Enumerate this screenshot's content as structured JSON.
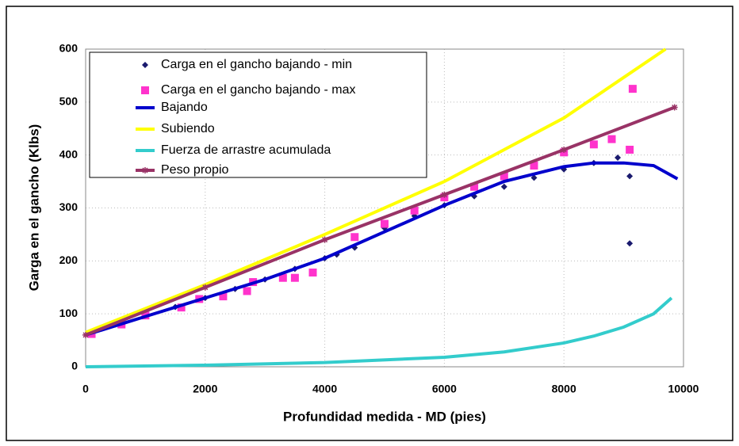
{
  "chart_data": {
    "type": "scatter",
    "xlabel": "Profundidad medida - MD (pies)",
    "ylabel": "Garga en el gancho (Klbs)",
    "xlim": [
      0,
      10000
    ],
    "xticks": [
      0,
      2000,
      4000,
      6000,
      8000,
      10000
    ],
    "ylim": [
      0,
      600
    ],
    "yticks": [
      0,
      100,
      200,
      300,
      400,
      500,
      600
    ],
    "grid": true,
    "legend": "top-left",
    "series": [
      {
        "name": "Carga en el gancho bajando - min",
        "color": "#1a1a6e",
        "mode": "markers",
        "marker": "diamond",
        "x": [
          100,
          500,
          1000,
          1500,
          2000,
          2500,
          3000,
          3500,
          4000,
          4200,
          4500,
          5000,
          5500,
          6000,
          6500,
          7000,
          7500,
          8000,
          8500,
          8900,
          9100,
          9100
        ],
        "values": [
          65,
          80,
          97,
          113,
          130,
          147,
          165,
          185,
          205,
          212,
          225,
          262,
          285,
          305,
          322,
          340,
          357,
          373,
          385,
          395,
          360,
          233
        ]
      },
      {
        "name": "Carga en el gancho bajando - max",
        "color": "#ff33cc",
        "mode": "markers",
        "marker": "square",
        "x": [
          100,
          600,
          1000,
          1600,
          1900,
          2300,
          2700,
          2800,
          3300,
          3500,
          3800,
          4500,
          5000,
          5500,
          6000,
          6500,
          7000,
          7500,
          8000,
          8500,
          8800,
          9100,
          9150
        ],
        "values": [
          62,
          80,
          97,
          112,
          128,
          133,
          143,
          160,
          168,
          168,
          178,
          245,
          270,
          295,
          320,
          340,
          360,
          380,
          405,
          420,
          430,
          410,
          525
        ]
      },
      {
        "name": "Bajando",
        "color": "#0000cc",
        "mode": "line",
        "x": [
          0,
          1000,
          2000,
          3000,
          4000,
          5000,
          6000,
          7000,
          8000,
          8500,
          9000,
          9500,
          9900
        ],
        "values": [
          60,
          95,
          130,
          165,
          205,
          255,
          305,
          350,
          378,
          385,
          385,
          380,
          355
        ]
      },
      {
        "name": "Subiendo",
        "color": "#ffff00",
        "mode": "line",
        "x": [
          0,
          2000,
          4000,
          6000,
          8000,
          9700
        ],
        "values": [
          65,
          155,
          250,
          350,
          470,
          600
        ]
      },
      {
        "name": "Fuerza de arrastre acumulada",
        "color": "#33cccc",
        "mode": "line",
        "x": [
          0,
          2000,
          4000,
          6000,
          7000,
          8000,
          8500,
          9000,
          9500,
          9800
        ],
        "values": [
          0,
          3,
          8,
          18,
          28,
          45,
          58,
          75,
          100,
          130
        ]
      },
      {
        "name": "Peso propio",
        "color": "#993366",
        "mode": "line",
        "marker": "star",
        "x": [
          0,
          2000,
          4000,
          6000,
          8000,
          9850
        ],
        "values": [
          60,
          150,
          240,
          325,
          410,
          490
        ]
      }
    ]
  }
}
